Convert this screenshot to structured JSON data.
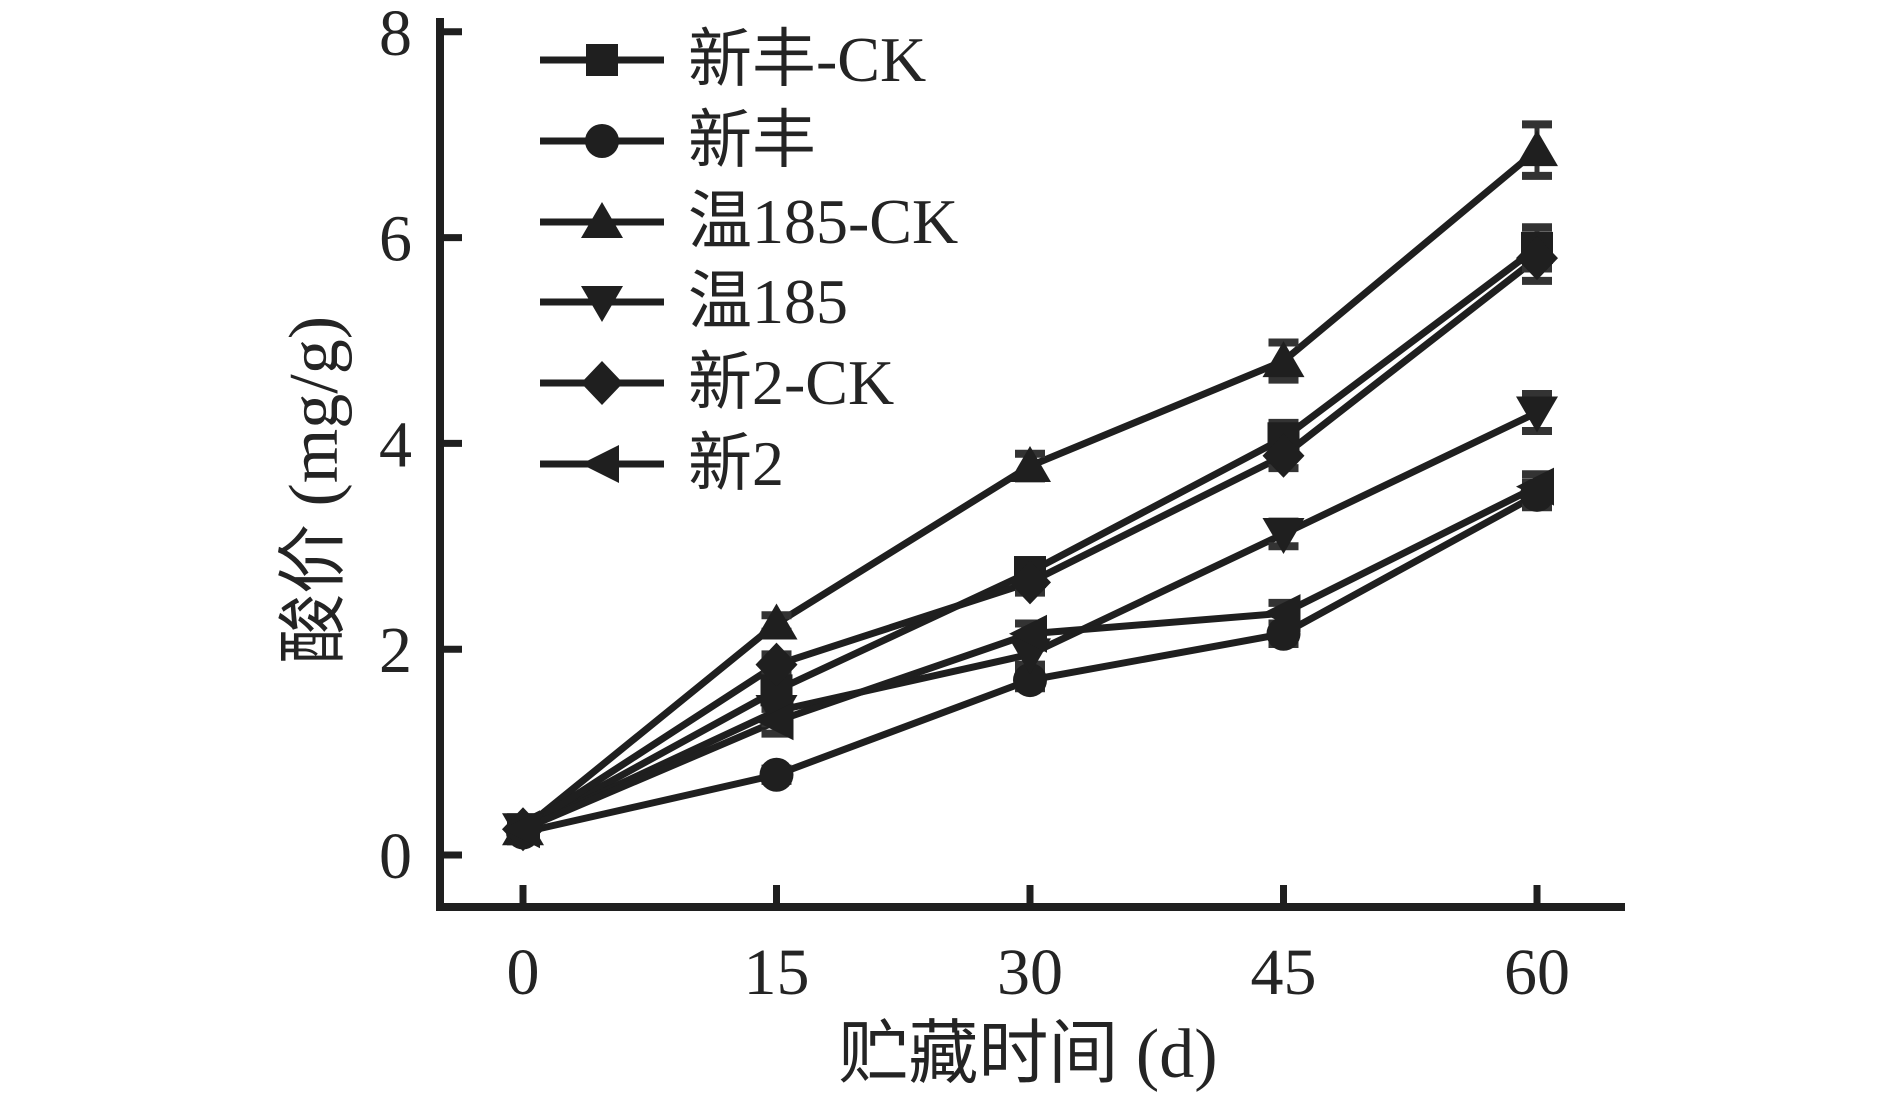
{
  "figure": {
    "background": "#ffffff",
    "ink_color": "#1f1f1f",
    "error_bar_color": "#333333",
    "text_color": "#242424"
  },
  "chart_data": {
    "type": "line",
    "title": "",
    "xlabel": "贮藏时间 (d)",
    "ylabel": "酸价 (mg/g)",
    "x": [
      0,
      15,
      30,
      45,
      60
    ],
    "x_tick_labels": [
      "0",
      "15",
      "30",
      "45",
      "60"
    ],
    "y_ticks": [
      0,
      2,
      4,
      6,
      8
    ],
    "y_tick_labels": [
      "0",
      "2",
      "4",
      "6",
      "8"
    ],
    "xlim": [
      -5,
      64
    ],
    "ylim": [
      -0.5,
      8
    ],
    "grid": false,
    "legend_position": "upper-left-inside",
    "error_bars": true,
    "series": [
      {
        "name": "新丰-CK",
        "marker": "square",
        "values": [
          0.25,
          1.6,
          2.75,
          4.05,
          5.9
        ],
        "errors": [
          0.04,
          0.12,
          0.1,
          0.15,
          0.2
        ]
      },
      {
        "name": "新丰",
        "marker": "circle",
        "values": [
          0.22,
          0.78,
          1.7,
          2.15,
          3.5
        ],
        "errors": [
          0.04,
          0.06,
          0.08,
          0.1,
          0.12
        ]
      },
      {
        "name": "温185-CK",
        "marker": "triangle-up",
        "values": [
          0.25,
          2.25,
          3.78,
          4.8,
          6.85
        ],
        "errors": [
          0.04,
          0.08,
          0.12,
          0.18,
          0.25
        ]
      },
      {
        "name": "温185",
        "marker": "triangle-down",
        "values": [
          0.25,
          1.4,
          1.95,
          3.12,
          4.3
        ],
        "errors": [
          0.04,
          0.12,
          0.1,
          0.12,
          0.18
        ]
      },
      {
        "name": "新2-CK",
        "marker": "diamond",
        "values": [
          0.25,
          1.85,
          2.65,
          3.88,
          5.8
        ],
        "errors": [
          0.04,
          0.1,
          0.1,
          0.12,
          0.22
        ]
      },
      {
        "name": "新2",
        "marker": "triangle-left",
        "values": [
          0.25,
          1.3,
          2.15,
          2.35,
          3.58
        ],
        "errors": [
          0.04,
          0.12,
          0.1,
          0.1,
          0.12
        ]
      }
    ]
  }
}
